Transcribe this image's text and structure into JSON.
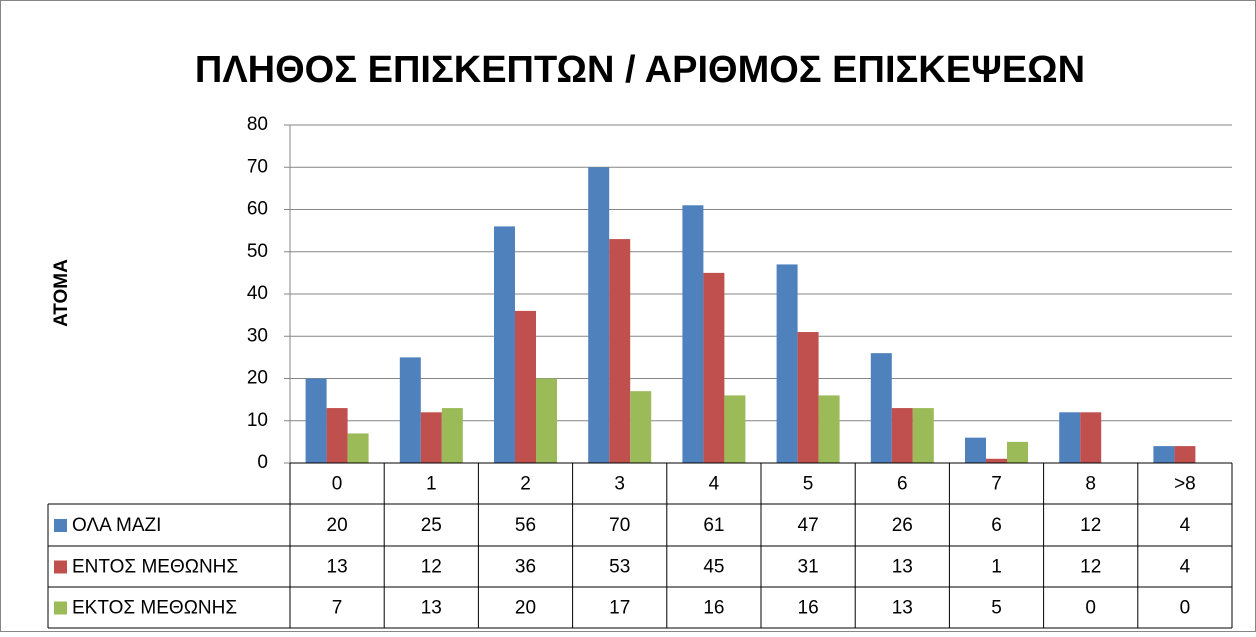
{
  "chart_data": {
    "type": "bar",
    "title": "ΠΛΗΘΟΣ ΕΠΙΣΚΕΠΤΩΝ / ΑΡΙΘΜΟΣ ΕΠΙΣΚΕΨΕΩΝ",
    "y_label": "ΑΤΟΜΑ",
    "categories": [
      "0",
      "1",
      "2",
      "3",
      "4",
      "5",
      "6",
      "7",
      "8",
      ">8"
    ],
    "series": [
      {
        "name": "ΟΛΑ ΜΑΖΙ",
        "color": "#4f81bd",
        "values": [
          20,
          25,
          56,
          70,
          61,
          47,
          26,
          6,
          12,
          4
        ]
      },
      {
        "name": "ΕΝΤΟΣ ΜΕΘΩΝΗΣ",
        "color": "#c0504d",
        "values": [
          13,
          12,
          36,
          53,
          45,
          31,
          13,
          1,
          12,
          4
        ]
      },
      {
        "name": "ΕΚΤΟΣ ΜΕΘΩΝΗΣ",
        "color": "#9bbb59",
        "values": [
          7,
          13,
          20,
          17,
          16,
          16,
          13,
          5,
          0,
          0
        ]
      }
    ],
    "ylim": [
      0,
      80
    ],
    "yticks": [
      0,
      10,
      20,
      30,
      40,
      50,
      60,
      70,
      80
    ],
    "grid": true,
    "data_table": true
  }
}
